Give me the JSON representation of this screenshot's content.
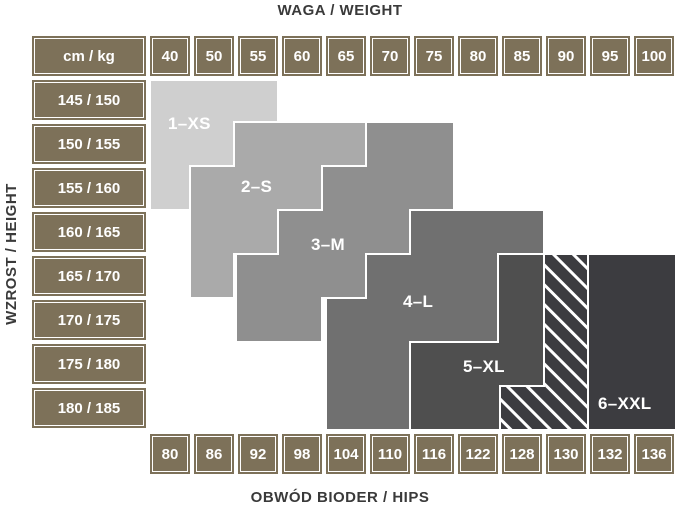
{
  "titles": {
    "top": "WAGA / WEIGHT",
    "left": "WZROST / HEIGHT",
    "bottom": "OBWÓD BIODER / HIPS"
  },
  "corner": "cm / kg",
  "weights": [
    "40",
    "50",
    "55",
    "60",
    "65",
    "70",
    "75",
    "80",
    "85",
    "90",
    "95",
    "100"
  ],
  "heights": [
    "145 / 150",
    "150 / 155",
    "155 / 160",
    "160 / 165",
    "165 / 170",
    "170 / 175",
    "175 / 180",
    "180 / 185"
  ],
  "hips": [
    "80",
    "86",
    "92",
    "98",
    "104",
    "110",
    "116",
    "122",
    "128",
    "130",
    "132",
    "136"
  ],
  "sizes": [
    {
      "label": "1–XS",
      "color": "#cfcfcf"
    },
    {
      "label": "2–S",
      "color": "#aaaaaa"
    },
    {
      "label": "3–M",
      "color": "#8f8f8f"
    },
    {
      "label": "4–L",
      "color": "#707070"
    },
    {
      "label": "5–XL",
      "color": "#4f4f4f"
    },
    {
      "label": "6–XXL",
      "color": "#3c3c40"
    }
  ],
  "colors": {
    "header_cell": "#7d7159",
    "text": "#3a3a3a"
  }
}
